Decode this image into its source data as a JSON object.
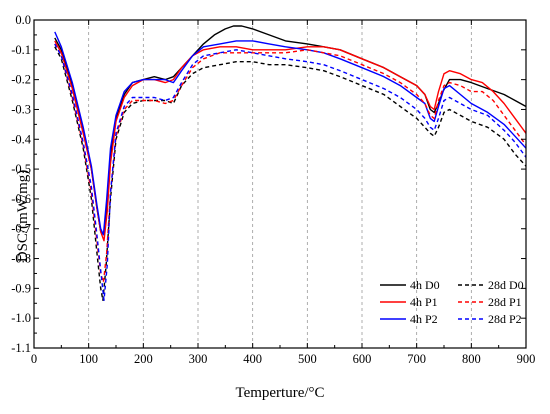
{
  "chart_data": {
    "type": "line",
    "title": "",
    "xlabel": "Temperture/°C",
    "ylabel": "DSC/(mW/mg)",
    "xlim": [
      0,
      900
    ],
    "ylim": [
      -1.1,
      0.0
    ],
    "x_ticks": [
      0,
      100,
      200,
      300,
      400,
      500,
      600,
      700,
      800,
      900
    ],
    "x_tick_labels": [
      "0",
      "100",
      "200",
      "300",
      "400",
      "500",
      "600",
      "700",
      "800",
      "900"
    ],
    "y_ticks": [
      0.0,
      -0.1,
      -0.2,
      -0.3,
      -0.4,
      -0.5,
      -0.6,
      -0.7,
      -0.8,
      -0.9,
      -1.0,
      -1.1
    ],
    "y_tick_labels": [
      "0.0",
      "-0.1",
      "-0.2",
      "-0.3",
      "-0.4",
      "-0.5",
      "-0.6",
      "-0.7",
      "-0.8",
      "-0.9",
      "-1.0",
      "-1.1"
    ],
    "grid": "vertical dashed lines at x ticks",
    "legend_position": "bottom-right",
    "series": [
      {
        "name": "4h D0",
        "color": "#000000",
        "dash": "solid",
        "points": [
          [
            38,
            -0.06
          ],
          [
            50,
            -0.1
          ],
          [
            70,
            -0.22
          ],
          [
            90,
            -0.37
          ],
          [
            105,
            -0.5
          ],
          [
            115,
            -0.63
          ],
          [
            122,
            -0.71
          ],
          [
            128,
            -0.72
          ],
          [
            133,
            -0.62
          ],
          [
            140,
            -0.45
          ],
          [
            150,
            -0.33
          ],
          [
            165,
            -0.25
          ],
          [
            180,
            -0.21
          ],
          [
            200,
            -0.2
          ],
          [
            220,
            -0.19
          ],
          [
            240,
            -0.2
          ],
          [
            255,
            -0.19
          ],
          [
            270,
            -0.16
          ],
          [
            290,
            -0.12
          ],
          [
            310,
            -0.08
          ],
          [
            330,
            -0.05
          ],
          [
            350,
            -0.03
          ],
          [
            365,
            -0.02
          ],
          [
            380,
            -0.02
          ],
          [
            400,
            -0.03
          ],
          [
            430,
            -0.05
          ],
          [
            460,
            -0.07
          ],
          [
            500,
            -0.08
          ],
          [
            530,
            -0.09
          ],
          [
            560,
            -0.1
          ],
          [
            600,
            -0.13
          ],
          [
            640,
            -0.16
          ],
          [
            670,
            -0.19
          ],
          [
            700,
            -0.22
          ],
          [
            715,
            -0.25
          ],
          [
            725,
            -0.3
          ],
          [
            732,
            -0.31
          ],
          [
            740,
            -0.28
          ],
          [
            748,
            -0.24
          ],
          [
            760,
            -0.2
          ],
          [
            780,
            -0.2
          ],
          [
            800,
            -0.21
          ],
          [
            830,
            -0.23
          ],
          [
            860,
            -0.25
          ],
          [
            880,
            -0.27
          ],
          [
            900,
            -0.29
          ]
        ]
      },
      {
        "name": "4h P1",
        "color": "#ff0000",
        "dash": "solid",
        "points": [
          [
            38,
            -0.07
          ],
          [
            50,
            -0.11
          ],
          [
            70,
            -0.23
          ],
          [
            90,
            -0.38
          ],
          [
            105,
            -0.5
          ],
          [
            115,
            -0.63
          ],
          [
            122,
            -0.71
          ],
          [
            128,
            -0.74
          ],
          [
            134,
            -0.64
          ],
          [
            140,
            -0.48
          ],
          [
            150,
            -0.34
          ],
          [
            165,
            -0.26
          ],
          [
            180,
            -0.22
          ],
          [
            200,
            -0.2
          ],
          [
            220,
            -0.2
          ],
          [
            240,
            -0.21
          ],
          [
            255,
            -0.2
          ],
          [
            270,
            -0.16
          ],
          [
            290,
            -0.12
          ],
          [
            310,
            -0.1
          ],
          [
            340,
            -0.09
          ],
          [
            370,
            -0.09
          ],
          [
            400,
            -0.1
          ],
          [
            430,
            -0.1
          ],
          [
            460,
            -0.1
          ],
          [
            500,
            -0.09
          ],
          [
            530,
            -0.09
          ],
          [
            560,
            -0.1
          ],
          [
            600,
            -0.13
          ],
          [
            640,
            -0.16
          ],
          [
            670,
            -0.19
          ],
          [
            700,
            -0.22
          ],
          [
            715,
            -0.25
          ],
          [
            725,
            -0.29
          ],
          [
            732,
            -0.3
          ],
          [
            740,
            -0.24
          ],
          [
            750,
            -0.18
          ],
          [
            760,
            -0.17
          ],
          [
            780,
            -0.18
          ],
          [
            800,
            -0.2
          ],
          [
            820,
            -0.21
          ],
          [
            840,
            -0.24
          ],
          [
            860,
            -0.28
          ],
          [
            880,
            -0.33
          ],
          [
            900,
            -0.38
          ]
        ]
      },
      {
        "name": "4h P2",
        "color": "#0000ff",
        "dash": "solid",
        "points": [
          [
            38,
            -0.04
          ],
          [
            50,
            -0.09
          ],
          [
            70,
            -0.21
          ],
          [
            90,
            -0.36
          ],
          [
            105,
            -0.49
          ],
          [
            115,
            -0.62
          ],
          [
            122,
            -0.7
          ],
          [
            127,
            -0.72
          ],
          [
            133,
            -0.6
          ],
          [
            140,
            -0.43
          ],
          [
            150,
            -0.32
          ],
          [
            165,
            -0.24
          ],
          [
            180,
            -0.21
          ],
          [
            200,
            -0.2
          ],
          [
            220,
            -0.2
          ],
          [
            240,
            -0.2
          ],
          [
            255,
            -0.21
          ],
          [
            270,
            -0.17
          ],
          [
            290,
            -0.12
          ],
          [
            310,
            -0.09
          ],
          [
            340,
            -0.08
          ],
          [
            370,
            -0.07
          ],
          [
            400,
            -0.07
          ],
          [
            430,
            -0.08
          ],
          [
            460,
            -0.09
          ],
          [
            500,
            -0.1
          ],
          [
            530,
            -0.11
          ],
          [
            560,
            -0.13
          ],
          [
            600,
            -0.16
          ],
          [
            640,
            -0.19
          ],
          [
            670,
            -0.22
          ],
          [
            700,
            -0.26
          ],
          [
            715,
            -0.28
          ],
          [
            725,
            -0.33
          ],
          [
            732,
            -0.34
          ],
          [
            740,
            -0.29
          ],
          [
            750,
            -0.23
          ],
          [
            760,
            -0.22
          ],
          [
            780,
            -0.25
          ],
          [
            800,
            -0.28
          ],
          [
            830,
            -0.31
          ],
          [
            860,
            -0.35
          ],
          [
            880,
            -0.39
          ],
          [
            900,
            -0.43
          ]
        ]
      },
      {
        "name": "28d D0",
        "color": "#000000",
        "dash": "dashed",
        "points": [
          [
            38,
            -0.09
          ],
          [
            50,
            -0.13
          ],
          [
            70,
            -0.27
          ],
          [
            90,
            -0.43
          ],
          [
            105,
            -0.6
          ],
          [
            115,
            -0.78
          ],
          [
            122,
            -0.9
          ],
          [
            126,
            -0.94
          ],
          [
            132,
            -0.82
          ],
          [
            140,
            -0.6
          ],
          [
            150,
            -0.4
          ],
          [
            165,
            -0.31
          ],
          [
            180,
            -0.28
          ],
          [
            200,
            -0.27
          ],
          [
            220,
            -0.27
          ],
          [
            240,
            -0.27
          ],
          [
            255,
            -0.28
          ],
          [
            270,
            -0.22
          ],
          [
            290,
            -0.18
          ],
          [
            310,
            -0.16
          ],
          [
            340,
            -0.15
          ],
          [
            370,
            -0.14
          ],
          [
            400,
            -0.14
          ],
          [
            430,
            -0.15
          ],
          [
            460,
            -0.15
          ],
          [
            500,
            -0.16
          ],
          [
            530,
            -0.17
          ],
          [
            560,
            -0.19
          ],
          [
            600,
            -0.22
          ],
          [
            640,
            -0.25
          ],
          [
            670,
            -0.29
          ],
          [
            700,
            -0.33
          ],
          [
            715,
            -0.36
          ],
          [
            725,
            -0.38
          ],
          [
            732,
            -0.39
          ],
          [
            740,
            -0.36
          ],
          [
            750,
            -0.31
          ],
          [
            760,
            -0.3
          ],
          [
            780,
            -0.32
          ],
          [
            800,
            -0.34
          ],
          [
            830,
            -0.36
          ],
          [
            860,
            -0.4
          ],
          [
            880,
            -0.45
          ],
          [
            900,
            -0.49
          ]
        ]
      },
      {
        "name": "28d P1",
        "color": "#ff0000",
        "dash": "dashed",
        "points": [
          [
            38,
            -0.08
          ],
          [
            50,
            -0.12
          ],
          [
            70,
            -0.26
          ],
          [
            90,
            -0.42
          ],
          [
            105,
            -0.58
          ],
          [
            115,
            -0.74
          ],
          [
            122,
            -0.85
          ],
          [
            127,
            -0.88
          ],
          [
            133,
            -0.78
          ],
          [
            140,
            -0.58
          ],
          [
            150,
            -0.39
          ],
          [
            165,
            -0.3
          ],
          [
            180,
            -0.27
          ],
          [
            200,
            -0.27
          ],
          [
            220,
            -0.27
          ],
          [
            240,
            -0.28
          ],
          [
            255,
            -0.27
          ],
          [
            270,
            -0.22
          ],
          [
            290,
            -0.16
          ],
          [
            310,
            -0.13
          ],
          [
            340,
            -0.11
          ],
          [
            370,
            -0.11
          ],
          [
            400,
            -0.11
          ],
          [
            430,
            -0.11
          ],
          [
            460,
            -0.11
          ],
          [
            500,
            -0.1
          ],
          [
            530,
            -0.11
          ],
          [
            560,
            -0.12
          ],
          [
            600,
            -0.15
          ],
          [
            640,
            -0.18
          ],
          [
            670,
            -0.21
          ],
          [
            700,
            -0.25
          ],
          [
            715,
            -0.28
          ],
          [
            725,
            -0.32
          ],
          [
            732,
            -0.33
          ],
          [
            740,
            -0.27
          ],
          [
            750,
            -0.22
          ],
          [
            760,
            -0.21
          ],
          [
            780,
            -0.22
          ],
          [
            800,
            -0.24
          ],
          [
            820,
            -0.24
          ],
          [
            840,
            -0.27
          ],
          [
            860,
            -0.32
          ],
          [
            880,
            -0.37
          ],
          [
            900,
            -0.42
          ]
        ]
      },
      {
        "name": "28d P2",
        "color": "#0000ff",
        "dash": "dashed",
        "points": [
          [
            38,
            -0.08
          ],
          [
            50,
            -0.12
          ],
          [
            70,
            -0.25
          ],
          [
            90,
            -0.41
          ],
          [
            105,
            -0.56
          ],
          [
            115,
            -0.72
          ],
          [
            122,
            -0.84
          ],
          [
            128,
            -0.94
          ],
          [
            134,
            -0.82
          ],
          [
            140,
            -0.58
          ],
          [
            150,
            -0.38
          ],
          [
            165,
            -0.29
          ],
          [
            180,
            -0.26
          ],
          [
            200,
            -0.26
          ],
          [
            220,
            -0.26
          ],
          [
            240,
            -0.27
          ],
          [
            255,
            -0.26
          ],
          [
            270,
            -0.21
          ],
          [
            290,
            -0.15
          ],
          [
            310,
            -0.12
          ],
          [
            340,
            -0.11
          ],
          [
            370,
            -0.1
          ],
          [
            400,
            -0.11
          ],
          [
            430,
            -0.12
          ],
          [
            460,
            -0.13
          ],
          [
            500,
            -0.14
          ],
          [
            530,
            -0.15
          ],
          [
            560,
            -0.17
          ],
          [
            600,
            -0.2
          ],
          [
            640,
            -0.23
          ],
          [
            670,
            -0.26
          ],
          [
            700,
            -0.3
          ],
          [
            715,
            -0.33
          ],
          [
            725,
            -0.36
          ],
          [
            732,
            -0.37
          ],
          [
            740,
            -0.33
          ],
          [
            750,
            -0.27
          ],
          [
            760,
            -0.26
          ],
          [
            780,
            -0.28
          ],
          [
            800,
            -0.3
          ],
          [
            830,
            -0.32
          ],
          [
            860,
            -0.37
          ],
          [
            880,
            -0.41
          ],
          [
            900,
            -0.46
          ]
        ]
      }
    ]
  }
}
